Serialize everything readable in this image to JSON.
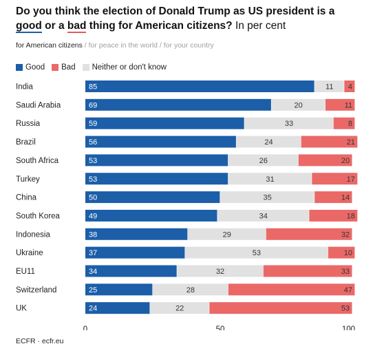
{
  "title": {
    "part1": "Do you think the election of Donald Trump as US president is a ",
    "good": "good",
    "part2": " or a ",
    "bad": "bad",
    "part3": " thing for American citizens?",
    "suffix": " In per cent"
  },
  "subtitle": {
    "active": "for American citizens",
    "inactive": " / for peace in the world / for your country"
  },
  "legend": [
    {
      "label": "Good",
      "color": "#1c5ea8"
    },
    {
      "label": "Bad",
      "color": "#ea6967"
    },
    {
      "label": "Neither or don't know",
      "color": "#e1e1e1"
    }
  ],
  "footer": "ECFR · ecfr.eu",
  "chart_data": {
    "type": "bar",
    "orientation": "horizontal",
    "stacked": true,
    "categories": [
      "India",
      "Saudi Arabia",
      "Russia",
      "Brazil",
      "South Africa",
      "Turkey",
      "China",
      "South Korea",
      "Indonesia",
      "Ukraine",
      "EU11",
      "Switzerland",
      "UK"
    ],
    "series": [
      {
        "name": "Good",
        "color": "#1c5ea8",
        "values": [
          85,
          69,
          59,
          56,
          53,
          53,
          50,
          49,
          38,
          37,
          34,
          25,
          24
        ]
      },
      {
        "name": "Neither or don't know",
        "color": "#e1e1e1",
        "values": [
          11,
          20,
          33,
          24,
          26,
          31,
          35,
          34,
          29,
          53,
          32,
          28,
          22
        ]
      },
      {
        "name": "Bad",
        "color": "#ea6967",
        "values": [
          4,
          11,
          8,
          21,
          20,
          17,
          14,
          18,
          32,
          10,
          33,
          47,
          53
        ]
      }
    ],
    "xlim": [
      0,
      100
    ],
    "xticks": [
      0,
      50,
      100
    ],
    "grid": false,
    "legend_position": "top-left"
  }
}
